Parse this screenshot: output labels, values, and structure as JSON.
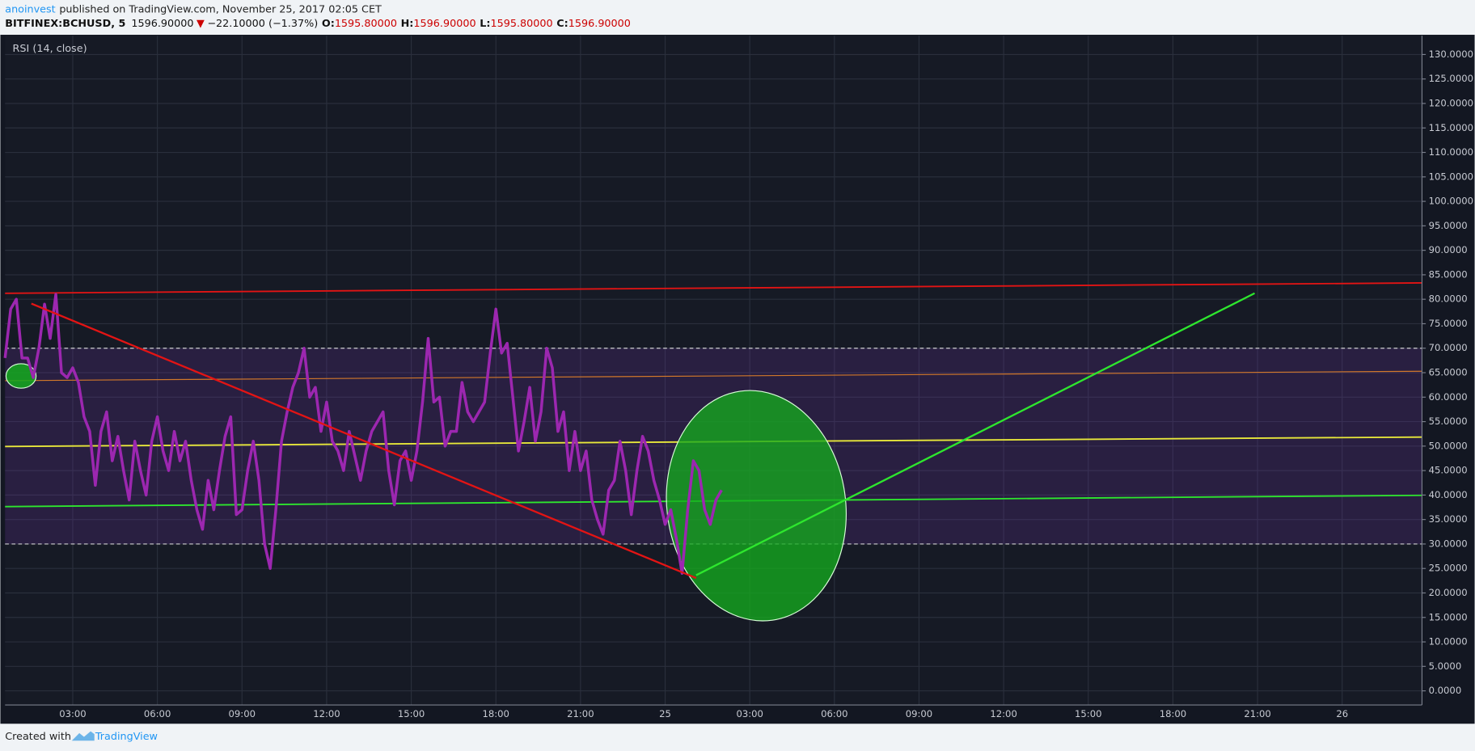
{
  "header": {
    "author": "anoinvest",
    "published": "published on TradingView.com, November 25, 2017 02:05 CET",
    "symbol": "BITFINEX:BCHUSD, 5",
    "last": "1596.90000",
    "arrow": "▼",
    "change": "−22.10000 (−1.37%)",
    "open_label": "O:",
    "open": "1595.80000",
    "high_label": "H:",
    "high": "1596.90000",
    "low_label": "L:",
    "low": "1595.80000",
    "close_label": "C:",
    "close": "1596.90000"
  },
  "footer": {
    "created": "Created with",
    "brand": "TradingView"
  },
  "chart_data": {
    "type": "line",
    "x": [
      0.6,
      0.8,
      1,
      1.2,
      1.4,
      1.6,
      1.8,
      2,
      2.2,
      2.4,
      2.6,
      2.8,
      3,
      3.2,
      3.4,
      3.6,
      3.8,
      4,
      4.2,
      4.4,
      4.6,
      4.8,
      5,
      5.2,
      5.4,
      5.6,
      5.8,
      6,
      6.2,
      6.4,
      6.6,
      6.8,
      7,
      7.2,
      7.4,
      7.6,
      7.8,
      8,
      8.2,
      8.4,
      8.6,
      8.8,
      9,
      9.2,
      9.4,
      9.6,
      9.8,
      10,
      10.2,
      10.4,
      10.6,
      10.8,
      11,
      11.2,
      11.4,
      11.6,
      11.8,
      12,
      12.2,
      12.4,
      12.6,
      12.8,
      13,
      13.2,
      13.4,
      13.6,
      13.8,
      14,
      14.2,
      14.4,
      14.6,
      14.8,
      15,
      15.2,
      15.4,
      15.6,
      15.8,
      16,
      16.2,
      16.4,
      16.6,
      16.8,
      17,
      17.2,
      17.4,
      17.6,
      17.8,
      18,
      18.2,
      18.4,
      18.6,
      18.8,
      19,
      19.2,
      19.4,
      19.6,
      19.8,
      20,
      20.2,
      20.4,
      20.6,
      20.8,
      21,
      21.2,
      21.4,
      21.6,
      21.8,
      22,
      22.2,
      22.4,
      22.6,
      22.8,
      23,
      23.2,
      23.4,
      23.6,
      23.8,
      24,
      24.2,
      24.4,
      24.6,
      24.8,
      25,
      25.2,
      25.4,
      25.6,
      25.8,
      26
    ],
    "series": [
      {
        "name": "RSI (14, close)",
        "color": "#9c27b0",
        "values": [
          68,
          78,
          80,
          68,
          68,
          64,
          70,
          79,
          72,
          81,
          65,
          64,
          66,
          63,
          56,
          53,
          42,
          53,
          57,
          47,
          52,
          45,
          39,
          51,
          45,
          40,
          51,
          56,
          49,
          45,
          53,
          47,
          51,
          43,
          37,
          33,
          43,
          37,
          45,
          52,
          56,
          36,
          37,
          45,
          51,
          43,
          30,
          25,
          37,
          51,
          57,
          62,
          65,
          70,
          60,
          62,
          53,
          59,
          51,
          49,
          45,
          53,
          48,
          43,
          49,
          53,
          55,
          57,
          45,
          38,
          47,
          49,
          43,
          49,
          59,
          72,
          59,
          60,
          50,
          53,
          53,
          63,
          57,
          55,
          57,
          59,
          69,
          78,
          69,
          71,
          60,
          49,
          55,
          62,
          51,
          57,
          70,
          66,
          53,
          57,
          45,
          53,
          45,
          49,
          39,
          35,
          32,
          41,
          43,
          51,
          45,
          36,
          45,
          52,
          49,
          43,
          39,
          34,
          37,
          31,
          24,
          37,
          47,
          45,
          37,
          34,
          39,
          41
        ]
      }
    ],
    "band": [
      30,
      70
    ],
    "xlim": [
      0.6,
      50.83
    ],
    "xticks": [
      {
        "value": 3,
        "label": "03:00"
      },
      {
        "value": 6,
        "label": "06:00"
      },
      {
        "value": 9,
        "label": "09:00"
      },
      {
        "value": 12,
        "label": "12:00"
      },
      {
        "value": 15,
        "label": "15:00"
      },
      {
        "value": 18,
        "label": "18:00"
      },
      {
        "value": 21,
        "label": "21:00"
      },
      {
        "value": 24,
        "label": "25"
      },
      {
        "value": 27,
        "label": "03:00"
      },
      {
        "value": 30,
        "label": "06:00"
      },
      {
        "value": 33,
        "label": "09:00"
      },
      {
        "value": 36,
        "label": "12:00"
      },
      {
        "value": 39,
        "label": "15:00"
      },
      {
        "value": 42,
        "label": "18:00"
      },
      {
        "value": 45,
        "label": "21:00"
      },
      {
        "value": 48,
        "label": "26"
      }
    ],
    "ylim": [
      -2.88,
      133.84
    ],
    "yticks": [
      {
        "value": 0,
        "label": "0.0000"
      },
      {
        "value": 5,
        "label": "5.0000"
      },
      {
        "value": 10,
        "label": "10.0000"
      },
      {
        "value": 15,
        "label": "15.0000"
      },
      {
        "value": 20,
        "label": "20.0000"
      },
      {
        "value": 25,
        "label": "25.0000"
      },
      {
        "value": 30,
        "label": "30.0000"
      },
      {
        "value": 35,
        "label": "35.0000"
      },
      {
        "value": 40,
        "label": "40.0000"
      },
      {
        "value": 45,
        "label": "45.0000"
      },
      {
        "value": 50,
        "label": "50.0000"
      },
      {
        "value": 55,
        "label": "55.0000"
      },
      {
        "value": 60,
        "label": "60.0000"
      },
      {
        "value": 65,
        "label": "65.0000"
      },
      {
        "value": 70,
        "label": "70.0000"
      },
      {
        "value": 75,
        "label": "75.0000"
      },
      {
        "value": 80,
        "label": "80.0000"
      },
      {
        "value": 85,
        "label": "85.0000"
      },
      {
        "value": 90,
        "label": "90.0000"
      },
      {
        "value": 95,
        "label": "95.0000"
      },
      {
        "value": 100,
        "label": "100.0000"
      },
      {
        "value": 105,
        "label": "105.0000"
      },
      {
        "value": 110,
        "label": "110.0000"
      },
      {
        "value": 115,
        "label": "115.0000"
      },
      {
        "value": 120,
        "label": "120.0000"
      },
      {
        "value": 125,
        "label": "125.0000"
      },
      {
        "value": 130,
        "label": "130.0000"
      }
    ],
    "grid": true
  }
}
